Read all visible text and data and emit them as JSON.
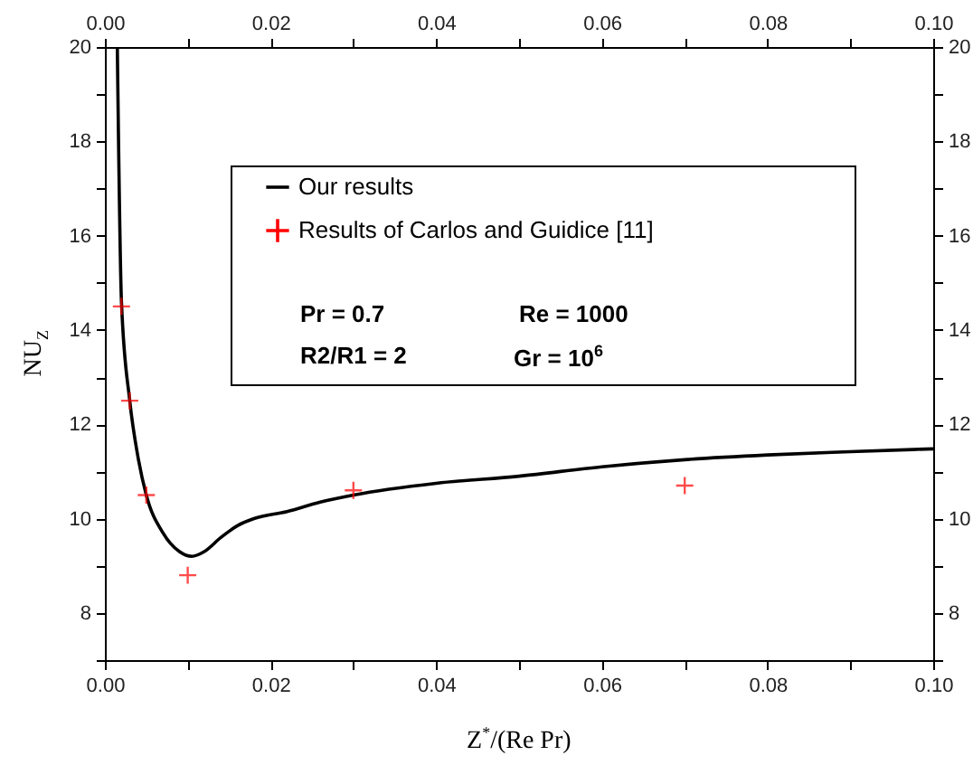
{
  "chart_data": {
    "type": "line",
    "xlabel": "Z$^{*}$/(Re Pr)",
    "ylabel": "NU$_{Z}$",
    "xlim": [
      0,
      0.1
    ],
    "ylim": [
      7,
      20
    ],
    "xticks": [
      {
        "value": 0,
        "label": "0.00"
      },
      {
        "value": 0.01,
        "label": null
      },
      {
        "value": 0.02,
        "label": "0.02"
      },
      {
        "value": 0.03,
        "label": null
      },
      {
        "value": 0.04,
        "label": "0.04"
      },
      {
        "value": 0.05,
        "label": null
      },
      {
        "value": 0.06,
        "label": "0.06"
      },
      {
        "value": 0.07,
        "label": null
      },
      {
        "value": 0.08,
        "label": "0.08"
      },
      {
        "value": 0.09,
        "label": null
      },
      {
        "value": 0.1,
        "label": "0.10"
      }
    ],
    "x2lim": [
      0,
      0.1
    ],
    "x2ticks": [
      {
        "value": 0,
        "label": "0.00"
      },
      {
        "value": 0.01,
        "label": null
      },
      {
        "value": 0.02,
        "label": "0.02"
      },
      {
        "value": 0.03,
        "label": null
      },
      {
        "value": 0.04,
        "label": "0.04"
      },
      {
        "value": 0.05,
        "label": null
      },
      {
        "value": 0.06,
        "label": "0.06"
      },
      {
        "value": 0.07,
        "label": null
      },
      {
        "value": 0.08,
        "label": "0.08"
      },
      {
        "value": 0.09,
        "label": null
      },
      {
        "value": 0.1,
        "label": "0.10"
      }
    ],
    "yticks": [
      {
        "value": 7,
        "label": null
      },
      8,
      {
        "value": 9,
        "label": null
      },
      10,
      {
        "value": 11,
        "label": null
      },
      12,
      {
        "value": 13,
        "label": null
      },
      14,
      {
        "value": 15,
        "label": null
      },
      16,
      {
        "value": 17,
        "label": null
      },
      18,
      {
        "value": 19,
        "label": null
      },
      20
    ],
    "y2lim": [
      7,
      20
    ],
    "y2ticks": [
      {
        "value": 7,
        "label": null
      },
      8,
      {
        "value": 9,
        "label": null
      },
      10,
      {
        "value": 11,
        "label": null
      },
      12,
      {
        "value": 13,
        "label": null
      },
      14,
      {
        "value": 15,
        "label": null
      },
      16,
      {
        "value": 17,
        "label": null
      },
      18,
      {
        "value": 19,
        "label": null
      },
      20
    ],
    "legend": "top",
    "line_style": "solid",
    "series": [
      {
        "name": "Our results",
        "color": "#000000",
        "marker": "none",
        "x": [
          0.0015,
          0.002,
          0.003,
          0.004,
          0.005,
          0.007,
          0.009,
          0.0105,
          0.012,
          0.014,
          0.016,
          0.018,
          0.022,
          0.026,
          0.03,
          0.04,
          0.05,
          0.06,
          0.07,
          0.08,
          0.09,
          0.1
        ],
        "values": [
          20,
          14.6,
          12.5,
          11.3,
          10.5,
          9.7,
          9.3,
          9.2,
          9.3,
          9.6,
          9.85,
          10.0,
          10.15,
          10.35,
          10.5,
          10.75,
          10.9,
          11.1,
          11.25,
          11.35,
          11.42,
          11.48
        ]
      },
      {
        "name": "Results of Carlos and Guidice [11]",
        "type": "scatter",
        "color": "#ff0000",
        "marker": "cross",
        "x": [
          0.002,
          0.003,
          0.005,
          0.01,
          0.03,
          0.07
        ],
        "values": [
          14.5,
          12.5,
          10.5,
          8.8,
          10.6,
          10.7
        ]
      }
    ],
    "annotations": [
      "Pr = 0.7",
      "Re = 1000",
      "R2/R1 = 2",
      "Gr = 10$^{6}$"
    ]
  }
}
